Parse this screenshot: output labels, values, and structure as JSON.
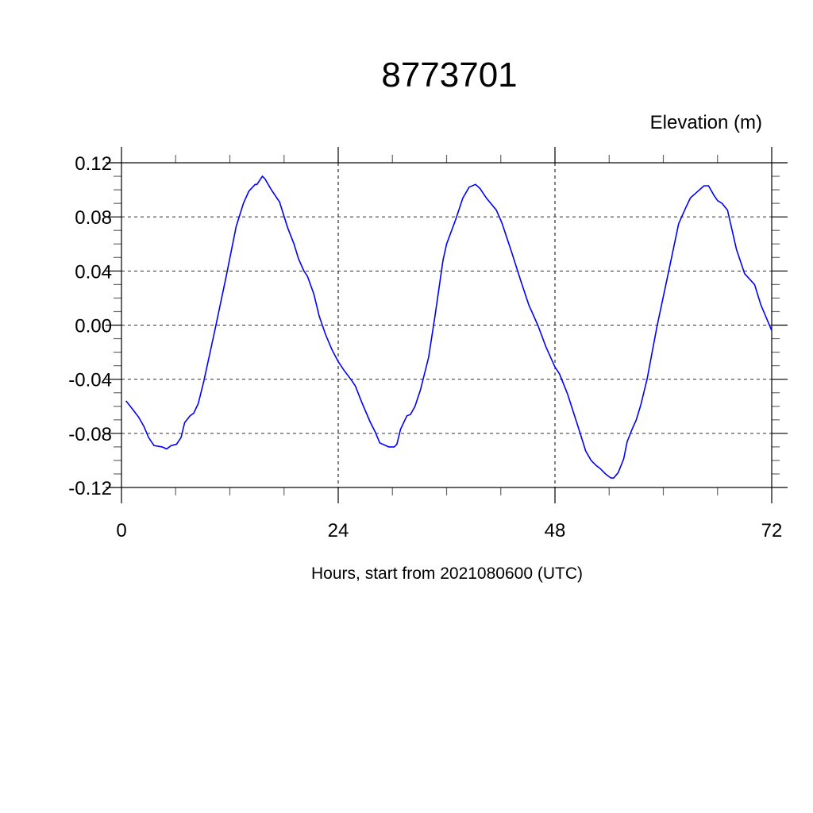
{
  "chart_data": {
    "type": "line",
    "title": "8773701",
    "subtitle_right": "Elevation (m)",
    "xlabel": "Hours, start from 2021080600 (UTC)",
    "ylabel": "",
    "xlim": [
      0,
      72
    ],
    "ylim": [
      -0.12,
      0.12
    ],
    "xticks": [
      0,
      24,
      48,
      72
    ],
    "xtick_labels": [
      "0",
      "24",
      "48",
      "72"
    ],
    "yticks": [
      0.12,
      0.08,
      0.04,
      0.0,
      -0.04,
      -0.08,
      -0.12
    ],
    "ytick_labels": [
      "0.12",
      "0.08",
      "0.04",
      "0.00",
      "-0.04",
      "-0.08",
      "-0.12"
    ],
    "grid": true,
    "line_color": "#0000ff",
    "series": [
      {
        "x": [
          0.5,
          1.1,
          1.9,
          2.5,
          3.0,
          3.6,
          4.5,
          5.0,
          5.5,
          6.1,
          6.6,
          7.0,
          7.6,
          8.0,
          8.5,
          9.1,
          10.3,
          11.6,
          12.7,
          13.5,
          14.1,
          14.8,
          15.0,
          15.6,
          15.9,
          16.6,
          17.5,
          18.4,
          19.1,
          19.6,
          20.2,
          20.6,
          21.3,
          21.9,
          22.6,
          23.3,
          24.0,
          24.6,
          25.5,
          25.9,
          26.6,
          27.5,
          28.1,
          28.6,
          29.6,
          30.2,
          30.5,
          30.9,
          31.6,
          32.0,
          32.5,
          33.1,
          34.0,
          34.7,
          35.6,
          36.0,
          37.0,
          37.8,
          38.5,
          39.2,
          39.7,
          40.4,
          41.5,
          42.1,
          43.2,
          44.2,
          45.1,
          46.1,
          47.0,
          48.0,
          48.5,
          49.4,
          50.6,
          51.4,
          52.0,
          52.6,
          53.0,
          53.6,
          54.2,
          54.5,
          55.0,
          55.6,
          56.0,
          56.6,
          57.0,
          57.5,
          58.2,
          59.3,
          60.6,
          61.7,
          62.5,
          63.0,
          63.5,
          64.5,
          65.0,
          65.6,
          66.0,
          66.5,
          67.1,
          68.1,
          69.0,
          70.1,
          70.8,
          72.0
        ],
        "y": [
          -0.056,
          -0.061,
          -0.068,
          -0.075,
          -0.083,
          -0.089,
          -0.09,
          -0.0915,
          -0.089,
          -0.088,
          -0.083,
          -0.072,
          -0.067,
          -0.065,
          -0.058,
          -0.042,
          -0.005,
          0.036,
          0.073,
          0.09,
          0.099,
          0.104,
          0.104,
          0.11,
          0.108,
          0.1,
          0.091,
          0.072,
          0.06,
          0.049,
          0.04,
          0.036,
          0.023,
          0.0065,
          -0.007,
          -0.018,
          -0.027,
          -0.033,
          -0.041,
          -0.045,
          -0.057,
          -0.071,
          -0.079,
          -0.087,
          -0.09,
          -0.09,
          -0.088,
          -0.077,
          -0.067,
          -0.066,
          -0.06,
          -0.048,
          -0.024,
          0.006,
          0.048,
          0.06,
          0.078,
          0.094,
          0.102,
          0.104,
          0.101,
          0.094,
          0.085,
          0.076,
          0.054,
          0.033,
          0.015,
          0.0,
          -0.016,
          -0.031,
          -0.036,
          -0.051,
          -0.076,
          -0.093,
          -0.1,
          -0.104,
          -0.106,
          -0.11,
          -0.113,
          -0.113,
          -0.109,
          -0.099,
          -0.086,
          -0.076,
          -0.07,
          -0.059,
          -0.04,
          -0.001,
          0.04,
          0.075,
          0.087,
          0.094,
          0.097,
          0.103,
          0.103,
          0.096,
          0.092,
          0.09,
          0.085,
          0.056,
          0.038,
          0.03,
          0.015,
          -0.004
        ]
      }
    ]
  }
}
